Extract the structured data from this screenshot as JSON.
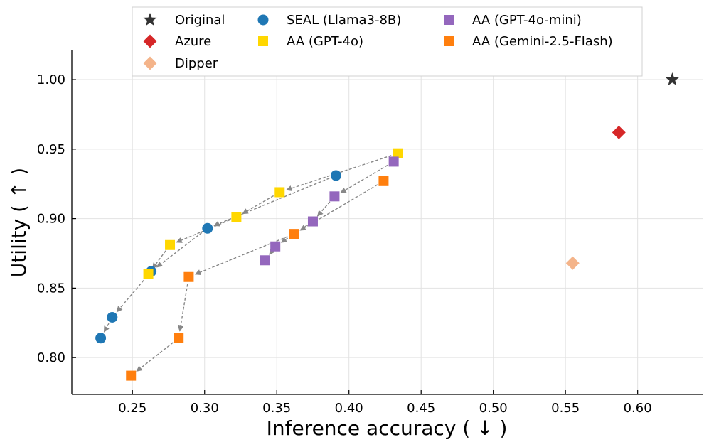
{
  "chart_data": {
    "type": "scatter",
    "xlabel": "Inference accuracy ( ↓ )",
    "ylabel": "Utility ( ↑ )",
    "xlim": [
      0.208,
      0.645
    ],
    "ylim": [
      0.7735,
      1.0215
    ],
    "xticks": [
      0.25,
      0.3,
      0.35,
      0.4,
      0.45,
      0.5,
      0.55,
      0.6
    ],
    "xtick_labels": [
      "0.25",
      "0.30",
      "0.35",
      "0.40",
      "0.45",
      "0.50",
      "0.55",
      "0.60"
    ],
    "yticks": [
      0.8,
      0.85,
      0.9,
      0.95,
      1.0
    ],
    "ytick_labels": [
      "0.80",
      "0.85",
      "0.90",
      "0.95",
      "1.00"
    ],
    "grid": true,
    "legend_position": "top-center",
    "series": [
      {
        "name": "Original",
        "marker": "star",
        "color": "#333333",
        "x": [
          0.624
        ],
        "y": [
          1.0
        ],
        "connected": false
      },
      {
        "name": "Azure",
        "marker": "diamond",
        "color": "#d62728",
        "x": [
          0.587
        ],
        "y": [
          0.962
        ],
        "connected": false
      },
      {
        "name": "Dipper",
        "marker": "diamond",
        "color": "#f4b48a",
        "x": [
          0.555
        ],
        "y": [
          0.868
        ],
        "connected": false
      },
      {
        "name": "SEAL (Llama3-8B)",
        "marker": "circle",
        "color": "#1f77b4",
        "x": [
          0.391,
          0.302,
          0.263,
          0.236,
          0.228
        ],
        "y": [
          0.931,
          0.893,
          0.862,
          0.829,
          0.814
        ],
        "connected": true
      },
      {
        "name": "AA (GPT-4o)",
        "marker": "square",
        "color": "#ffd700",
        "x": [
          0.434,
          0.352,
          0.322,
          0.276,
          0.261
        ],
        "y": [
          0.947,
          0.919,
          0.901,
          0.881,
          0.86
        ],
        "connected": true
      },
      {
        "name": "AA (GPT-4o-mini)",
        "marker": "square",
        "color": "#9467bd",
        "x": [
          0.431,
          0.39,
          0.375,
          0.349,
          0.342
        ],
        "y": [
          0.941,
          0.916,
          0.898,
          0.88,
          0.87
        ],
        "connected": true
      },
      {
        "name": "AA (Gemini-2.5-Flash)",
        "marker": "square",
        "color": "#ff7f0e",
        "x": [
          0.424,
          0.362,
          0.289,
          0.282,
          0.249
        ],
        "y": [
          0.927,
          0.889,
          0.858,
          0.814,
          0.787
        ],
        "connected": true
      }
    ],
    "legend_order": [
      "Original",
      "Azure",
      "Dipper",
      "SEAL (Llama3-8B)",
      "AA (GPT-4o)",
      "AA (GPT-4o-mini)",
      "AA (Gemini-2.5-Flash)"
    ]
  }
}
